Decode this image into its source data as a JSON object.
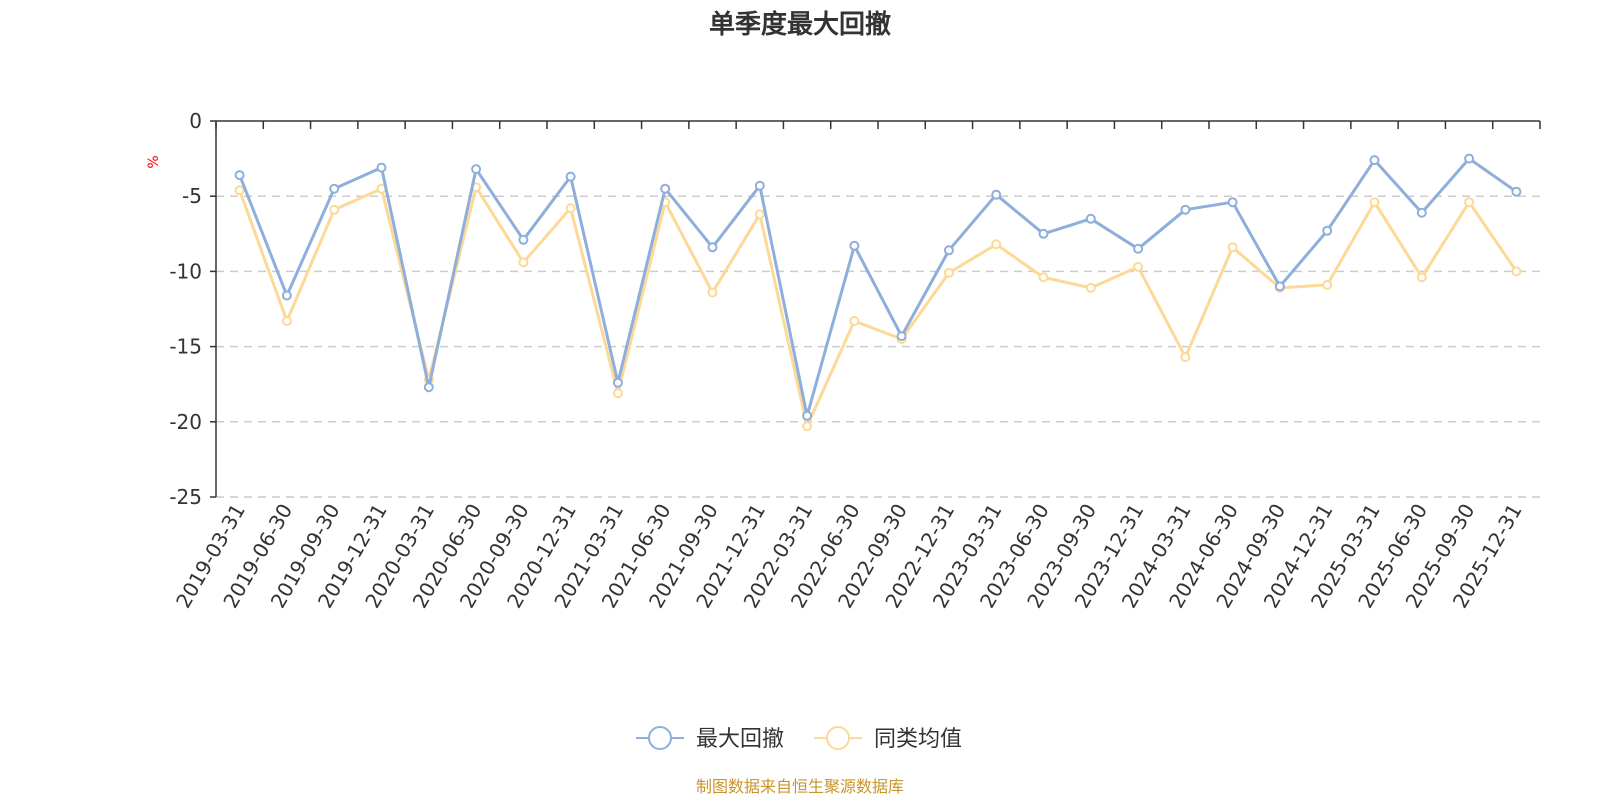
{
  "chart_data": {
    "type": "line",
    "title": "单季度最大回撤",
    "ylabel": "%",
    "ylim": [
      -25,
      0
    ],
    "yticks": [
      0,
      -5,
      -10,
      -15,
      -20,
      -25
    ],
    "grid": true,
    "legend_position": "bottom-center",
    "categories": [
      "2019-03-31",
      "2019-06-30",
      "2019-09-30",
      "2019-12-31",
      "2020-03-31",
      "2020-06-30",
      "2020-09-30",
      "2020-12-31",
      "2021-03-31",
      "2021-06-30",
      "2021-09-30",
      "2021-12-31",
      "2022-03-31",
      "2022-06-30",
      "2022-09-30",
      "2022-12-31",
      "2023-03-31",
      "2023-06-30",
      "2023-09-30",
      "2023-12-31",
      "2024-03-31",
      "2024-06-30",
      "2024-09-30",
      "2024-12-31",
      "2025-03-31",
      "2025-06-30",
      "2025-09-30",
      "2025-12-31"
    ],
    "series": [
      {
        "name": "最大回撤",
        "color": "#8eaedb",
        "values": [
          -3.6,
          -11.6,
          -4.5,
          -3.1,
          -17.7,
          -3.2,
          -7.9,
          -3.7,
          -17.4,
          -4.5,
          -8.4,
          -4.3,
          -19.6,
          -8.3,
          -14.3,
          -8.6,
          -4.9,
          -7.5,
          -6.5,
          -8.5,
          -5.9,
          -5.4,
          -11.0,
          -7.3,
          -2.6,
          -6.1,
          -2.5,
          -4.7
        ]
      },
      {
        "name": "同类均值",
        "color": "#fcd996",
        "values": [
          -4.6,
          -13.3,
          -5.9,
          -4.5,
          -17.2,
          -4.4,
          -9.4,
          -5.8,
          -18.1,
          -5.4,
          -11.4,
          -6.2,
          -20.3,
          -13.3,
          -14.5,
          -10.1,
          -8.2,
          -10.4,
          -11.1,
          -9.7,
          -15.7,
          -8.4,
          -11.1,
          -10.9,
          -5.4,
          -10.4,
          -5.4,
          -10.0
        ]
      }
    ],
    "source": "制图数据来自恒生聚源数据库"
  }
}
